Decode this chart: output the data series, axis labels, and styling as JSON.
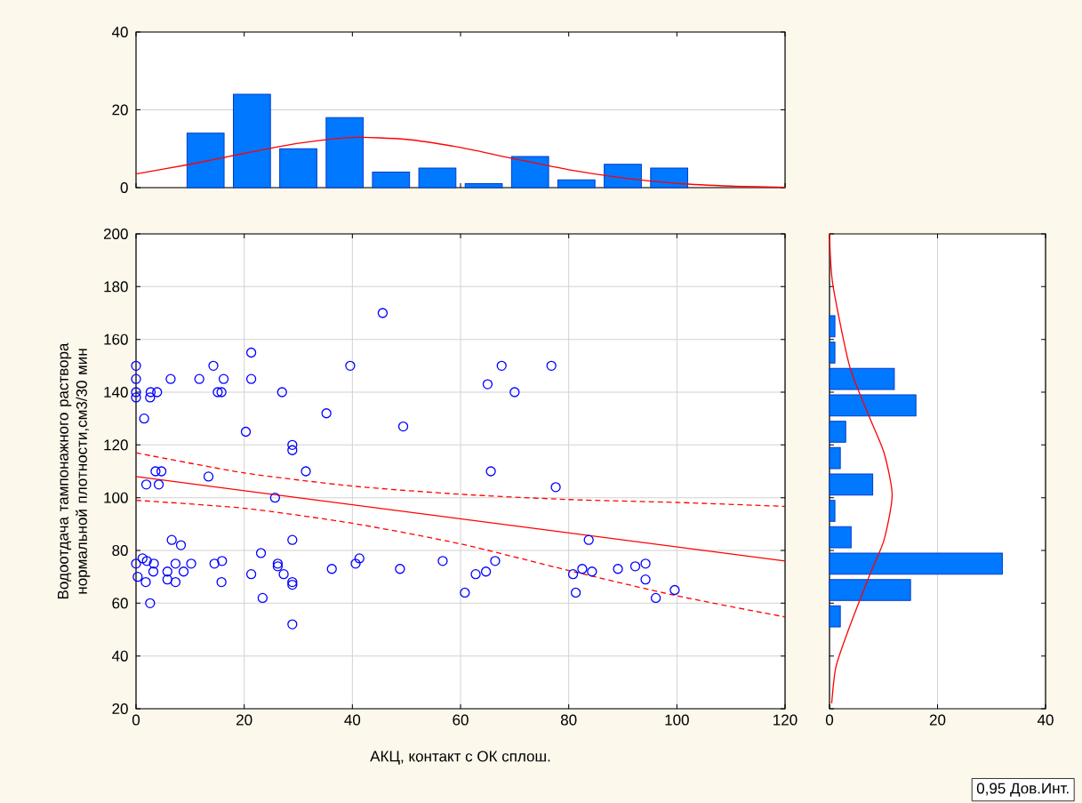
{
  "chart_data": [
    {
      "type": "histogram",
      "xlim": [
        0,
        120
      ],
      "ylim": [
        0,
        40
      ],
      "xticks": [
        0,
        20,
        40,
        60,
        80,
        100,
        120
      ],
      "yticks": [
        0,
        20,
        40
      ],
      "tick_labels": "y",
      "grid": "y",
      "series": [
        {
          "color": "#0078ff",
          "bins": [
            0,
            8.57,
            17.14,
            25.71,
            34.29,
            42.86,
            51.43,
            60,
            68.57,
            77.14,
            85.71,
            94.29,
            102.86,
            111.43,
            120
          ],
          "values": [
            0,
            14,
            24,
            10,
            18,
            4,
            5,
            1,
            8,
            2,
            6,
            5,
            0,
            0
          ]
        },
        {
          "type": "line",
          "color": "#ff0000",
          "line_style": "solid",
          "x": [
            0,
            10,
            20,
            30,
            40,
            50,
            60,
            70,
            80,
            90,
            100,
            110,
            120
          ],
          "values": [
            3.5,
            6.0,
            8.8,
            11.4,
            12.9,
            12.4,
            10.3,
            7.4,
            4.6,
            2.5,
            1.1,
            0.4,
            0.1
          ]
        }
      ]
    },
    {
      "type": "scatter",
      "xlabel": "АКЦ, контакт с ОК сплош.",
      "ylabel": "Водоотдача  тампонажного раствора нормальной плотности,см3/30 мин",
      "xlim": [
        0,
        120
      ],
      "ylim": [
        20,
        200
      ],
      "xticks": [
        0,
        20,
        40,
        60,
        80,
        100,
        120
      ],
      "yticks": [
        20,
        40,
        60,
        80,
        100,
        120,
        140,
        160,
        180,
        200
      ],
      "grid": true,
      "annotations": [
        "0,95 Дов.Инт."
      ],
      "series": [
        {
          "color": "#0000ff",
          "marker": "circle",
          "x": [
            45.6,
            21.3,
            14.3,
            39.6,
            0,
            0,
            6.4,
            11.7,
            16.2,
            21.3,
            0,
            0,
            2.7,
            3.9,
            2.6,
            15.1,
            15.8,
            27.0,
            1.5,
            20.3,
            35.2,
            49.4,
            28.9,
            28.9,
            3.6,
            4.7,
            31.4,
            13.4,
            1.9,
            4.2,
            25.7,
            6.6,
            8.3,
            28.9,
            23.1,
            1.2,
            2.0,
            3.3,
            0,
            3.2,
            0.3,
            1.8,
            5.8,
            5.8,
            7.3,
            7.3,
            8.8,
            10.2,
            14.5,
            15.9,
            15.8,
            2.6,
            21.3,
            23.4,
            26.2,
            26.2,
            27.3,
            28.9,
            28.9,
            28.9,
            36.2,
            40.6,
            41.3,
            48.8,
            56.7,
            60.8,
            67.6,
            76.8,
            65.0,
            70.0,
            65.6,
            77.6,
            62.8,
            64.7,
            66.4,
            80.8,
            81.3,
            82.5,
            84.3,
            83.7,
            89.1,
            92.3,
            94.2,
            94.2,
            96.1,
            99.6
          ],
          "values": [
            170,
            155,
            150,
            150,
            150,
            145,
            145,
            145,
            145,
            145,
            140,
            138,
            140,
            140,
            138,
            140,
            140,
            140,
            130,
            125,
            132,
            127,
            120,
            118,
            110,
            110,
            110,
            108,
            105,
            105,
            100,
            84,
            82,
            84,
            79,
            77,
            76,
            75,
            75,
            72,
            70,
            68,
            72,
            69,
            75,
            68,
            72,
            75,
            75,
            76,
            68,
            60,
            71,
            62,
            75,
            74,
            71,
            68,
            67,
            52,
            73,
            75,
            77,
            73,
            76,
            64,
            150,
            150,
            143,
            140,
            110,
            104,
            71,
            72,
            76,
            71,
            64,
            73,
            72,
            84,
            73,
            74,
            75,
            69,
            62,
            65
          ]
        },
        {
          "type": "line",
          "color": "#ff0000",
          "line_style": "solid",
          "x": [
            0,
            120
          ],
          "values": [
            108,
            76
          ]
        },
        {
          "type": "line",
          "color": "#ff0000",
          "line_style": "dashed",
          "x": [
            0,
            20,
            40,
            60,
            80,
            100,
            120
          ],
          "values": [
            117,
            109.4,
            104.4,
            101.3,
            99.3,
            98.2,
            96.7
          ]
        },
        {
          "type": "line",
          "color": "#ff0000",
          "line_style": "dashed",
          "x": [
            0,
            20,
            40,
            60,
            80,
            100,
            120
          ],
          "values": [
            99,
            96,
            90.3,
            82.5,
            72.4,
            62.8,
            54.8
          ]
        }
      ]
    },
    {
      "type": "histogram",
      "orientation": "horizontal",
      "xlim": [
        0,
        40
      ],
      "ylim": [
        20,
        200
      ],
      "xticks": [
        0,
        20,
        40
      ],
      "yticks": [
        20,
        40,
        60,
        80,
        100,
        120,
        140,
        160,
        180,
        200
      ],
      "tick_labels": "x",
      "grid": "x",
      "series": [
        {
          "color": "#0078ff",
          "bins": [
            50,
            60,
            70,
            80,
            90,
            100,
            110,
            120,
            130,
            140,
            150,
            160,
            170
          ],
          "values": [
            2,
            15,
            32,
            4,
            1,
            8,
            2,
            3,
            16,
            12,
            1,
            1
          ]
        },
        {
          "type": "line",
          "color": "#ff0000",
          "line_style": "solid",
          "x": [
            22,
            36,
            51,
            70,
            84,
            101,
            117,
            131,
            150,
            181,
            200
          ],
          "values": [
            0.4,
            1.2,
            3.7,
            7.3,
            10.1,
            11.6,
            10.1,
            7.3,
            3.7,
            0.6,
            0
          ]
        }
      ]
    }
  ]
}
